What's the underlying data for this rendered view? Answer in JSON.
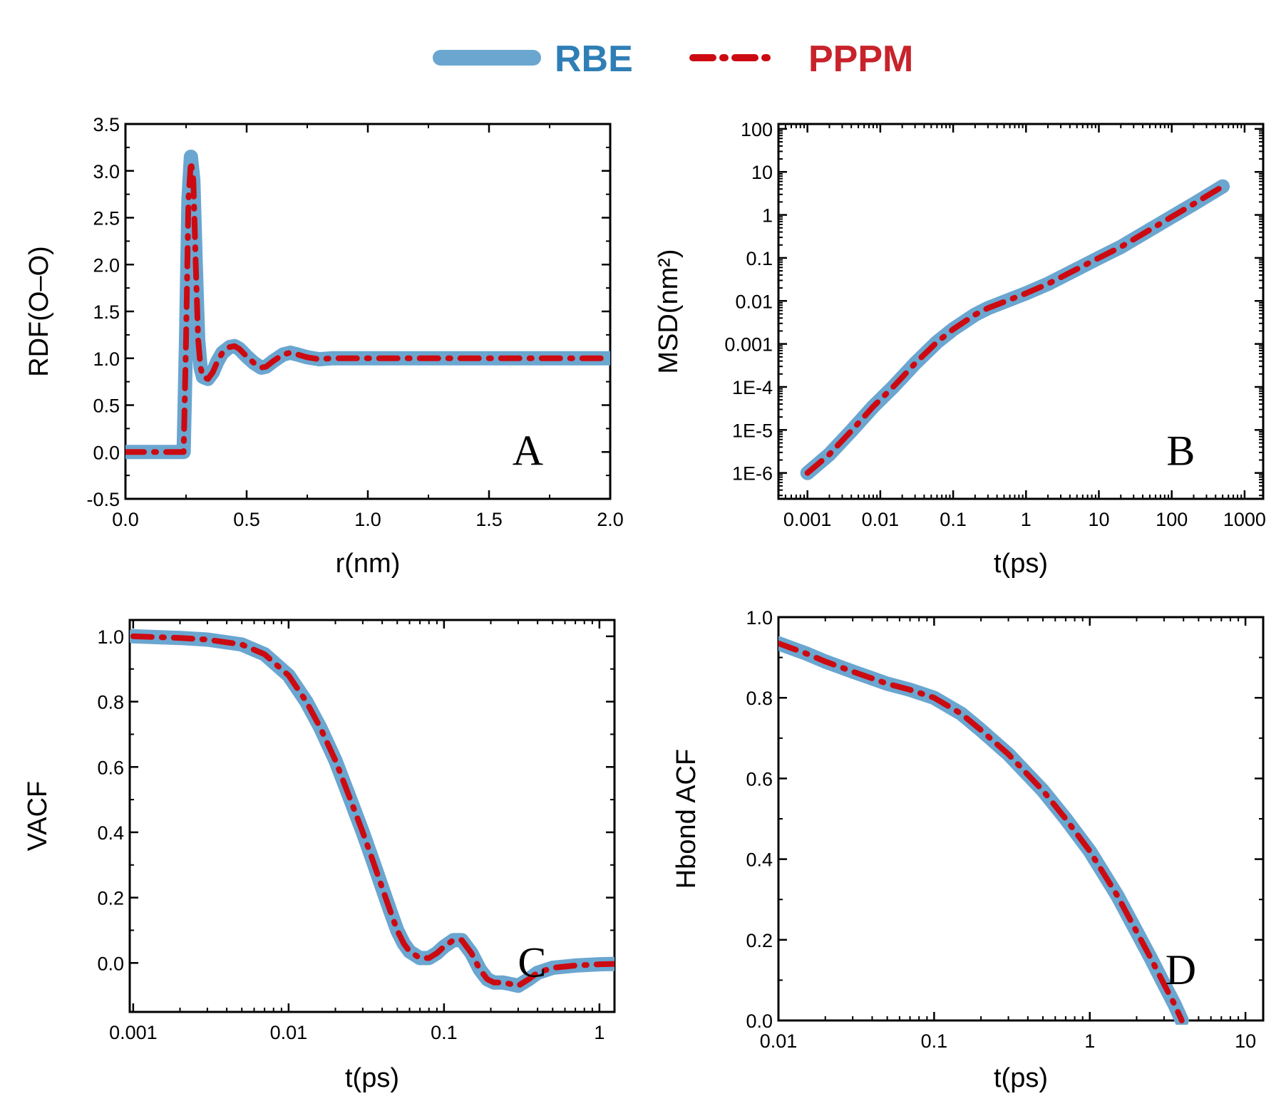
{
  "legend": {
    "rbe_label": "RBE",
    "pppm_label": "PPPM",
    "rbe_color": "#6aa6d0",
    "pppm_color": "#cc0a12",
    "rbe_text_color": "#2f7fb6",
    "pppm_text_color": "#c8232b"
  },
  "chart_data": [
    {
      "panel": "A",
      "type": "line",
      "xlabel": "r(nm)",
      "ylabel": "RDF(O–O)",
      "xscale": "linear",
      "yscale": "linear",
      "xlim": [
        0,
        2.0
      ],
      "ylim": [
        -0.5,
        3.5
      ],
      "xticks": [
        {
          "v": 0,
          "label": "0.0"
        },
        {
          "v": 0.5,
          "label": "0.5"
        },
        {
          "v": 1.0,
          "label": "1.0"
        },
        {
          "v": 1.5,
          "label": "1.5"
        },
        {
          "v": 2.0,
          "label": "2.0"
        }
      ],
      "yticks": [
        {
          "v": -0.5,
          "label": "-0.5"
        },
        {
          "v": 0,
          "label": "0.0"
        },
        {
          "v": 0.5,
          "label": "0.5"
        },
        {
          "v": 1.0,
          "label": "1.0"
        },
        {
          "v": 1.5,
          "label": "1.5"
        },
        {
          "v": 2.0,
          "label": "2.0"
        },
        {
          "v": 2.5,
          "label": "2.5"
        },
        {
          "v": 3.0,
          "label": "3.0"
        },
        {
          "v": 3.5,
          "label": "3.5"
        }
      ],
      "series": [
        {
          "name": "RBE",
          "x": [
            0,
            0.1,
            0.2,
            0.24,
            0.25,
            0.26,
            0.27,
            0.28,
            0.29,
            0.3,
            0.31,
            0.32,
            0.34,
            0.36,
            0.38,
            0.4,
            0.43,
            0.45,
            0.47,
            0.5,
            0.53,
            0.56,
            0.58,
            0.61,
            0.65,
            0.68,
            0.71,
            0.75,
            0.8,
            0.85,
            0.9,
            1.0,
            1.2,
            1.4,
            1.6,
            1.8,
            2.0
          ],
          "y": [
            0,
            0,
            0,
            0,
            1.2,
            2.7,
            3.15,
            2.9,
            2.0,
            1.2,
            0.9,
            0.8,
            0.78,
            0.85,
            0.97,
            1.06,
            1.12,
            1.13,
            1.1,
            1.02,
            0.95,
            0.9,
            0.91,
            0.97,
            1.04,
            1.06,
            1.04,
            1.01,
            0.99,
            1.0,
            1.0,
            1.0,
            1.0,
            1.0,
            1.0,
            1.0,
            1.0
          ]
        },
        {
          "name": "PPPM",
          "x": [
            0,
            0.1,
            0.2,
            0.24,
            0.25,
            0.26,
            0.27,
            0.28,
            0.29,
            0.3,
            0.31,
            0.32,
            0.34,
            0.36,
            0.38,
            0.4,
            0.43,
            0.45,
            0.47,
            0.5,
            0.53,
            0.56,
            0.58,
            0.61,
            0.65,
            0.68,
            0.71,
            0.75,
            0.8,
            0.85,
            0.9,
            1.0,
            1.2,
            1.4,
            1.6,
            1.8,
            2.0
          ],
          "y": [
            0,
            0,
            0,
            0,
            1.2,
            2.7,
            3.1,
            2.9,
            2.0,
            1.2,
            0.9,
            0.8,
            0.78,
            0.85,
            0.97,
            1.06,
            1.12,
            1.13,
            1.1,
            1.02,
            0.95,
            0.9,
            0.91,
            0.97,
            1.04,
            1.06,
            1.04,
            1.01,
            0.99,
            1.0,
            1.0,
            1.0,
            1.0,
            1.0,
            1.0,
            1.0,
            1.0
          ]
        }
      ]
    },
    {
      "panel": "B",
      "type": "line",
      "xlabel": "t(ps)",
      "ylabel": "MSD(nm²)",
      "xscale": "log",
      "yscale": "log",
      "xlim": [
        0.0004,
        1800
      ],
      "ylim": [
        2.5e-07,
        130
      ],
      "xticks": [
        {
          "v": 0.001,
          "label": "0.001"
        },
        {
          "v": 0.01,
          "label": "0.01"
        },
        {
          "v": 0.1,
          "label": "0.1"
        },
        {
          "v": 1,
          "label": "1"
        },
        {
          "v": 10,
          "label": "10"
        },
        {
          "v": 100,
          "label": "100"
        },
        {
          "v": 1000,
          "label": "1000"
        }
      ],
      "yticks": [
        {
          "v": 1e-06,
          "label": "1E-6"
        },
        {
          "v": 1e-05,
          "label": "1E-5"
        },
        {
          "v": 0.0001,
          "label": "1E-4"
        },
        {
          "v": 0.001,
          "label": "0.001"
        },
        {
          "v": 0.01,
          "label": "0.01"
        },
        {
          "v": 0.1,
          "label": "0.1"
        },
        {
          "v": 1,
          "label": "1"
        },
        {
          "v": 10,
          "label": "10"
        },
        {
          "v": 100,
          "label": "100"
        }
      ],
      "series": [
        {
          "name": "RBE",
          "x": [
            0.001,
            0.002,
            0.004,
            0.008,
            0.015,
            0.03,
            0.06,
            0.1,
            0.2,
            0.3,
            0.5,
            1,
            2,
            5,
            10,
            20,
            50,
            100,
            200,
            500
          ],
          "y": [
            1e-06,
            2.7e-06,
            9.5e-06,
            3.5e-05,
            0.0001,
            0.00035,
            0.0011,
            0.0022,
            0.0048,
            0.0068,
            0.0095,
            0.015,
            0.025,
            0.055,
            0.1,
            0.18,
            0.45,
            0.9,
            1.8,
            4.6
          ]
        },
        {
          "name": "PPPM",
          "x": [
            0.001,
            0.002,
            0.004,
            0.008,
            0.015,
            0.03,
            0.06,
            0.1,
            0.2,
            0.3,
            0.5,
            1,
            2,
            5,
            10,
            20,
            50,
            100,
            200,
            500
          ],
          "y": [
            1e-06,
            2.7e-06,
            9.5e-06,
            3.5e-05,
            0.0001,
            0.00035,
            0.0011,
            0.0022,
            0.0048,
            0.0068,
            0.0095,
            0.015,
            0.025,
            0.055,
            0.1,
            0.18,
            0.45,
            0.9,
            1.8,
            4.6
          ]
        }
      ]
    },
    {
      "panel": "C",
      "type": "line",
      "xlabel": "t(ps)",
      "ylabel": "VACF",
      "xscale": "log",
      "yscale": "linear",
      "xlim": [
        0.00095,
        1.25
      ],
      "ylim": [
        -0.15,
        1.05
      ],
      "xticks": [
        {
          "v": 0.001,
          "label": "0.001"
        },
        {
          "v": 0.01,
          "label": "0.01"
        },
        {
          "v": 0.1,
          "label": "0.1"
        },
        {
          "v": 1,
          "label": "1"
        }
      ],
      "yticks": [
        {
          "v": 0,
          "label": "0.0"
        },
        {
          "v": 0.2,
          "label": "0.2"
        },
        {
          "v": 0.4,
          "label": "0.4"
        },
        {
          "v": 0.6,
          "label": "0.6"
        },
        {
          "v": 0.8,
          "label": "0.8"
        },
        {
          "v": 1.0,
          "label": "1.0"
        }
      ],
      "series": [
        {
          "name": "RBE",
          "x": [
            0.001,
            0.002,
            0.003,
            0.005,
            0.007,
            0.01,
            0.013,
            0.016,
            0.02,
            0.025,
            0.03,
            0.035,
            0.04,
            0.045,
            0.05,
            0.055,
            0.06,
            0.07,
            0.08,
            0.09,
            0.1,
            0.115,
            0.13,
            0.15,
            0.17,
            0.19,
            0.21,
            0.24,
            0.27,
            0.3,
            0.35,
            0.4,
            0.5,
            0.7,
            1.0,
            1.25
          ],
          "y": [
            1.0,
            0.995,
            0.99,
            0.975,
            0.945,
            0.88,
            0.8,
            0.72,
            0.62,
            0.5,
            0.4,
            0.31,
            0.23,
            0.16,
            0.1,
            0.06,
            0.035,
            0.015,
            0.015,
            0.03,
            0.05,
            0.07,
            0.07,
            0.03,
            -0.02,
            -0.05,
            -0.06,
            -0.06,
            -0.065,
            -0.07,
            -0.05,
            -0.03,
            -0.015,
            -0.008,
            -0.004,
            -0.003
          ]
        },
        {
          "name": "PPPM",
          "x": [
            0.001,
            0.002,
            0.003,
            0.005,
            0.007,
            0.01,
            0.013,
            0.016,
            0.02,
            0.025,
            0.03,
            0.035,
            0.04,
            0.045,
            0.05,
            0.055,
            0.06,
            0.07,
            0.08,
            0.09,
            0.1,
            0.115,
            0.13,
            0.15,
            0.17,
            0.19,
            0.21,
            0.24,
            0.27,
            0.3,
            0.35,
            0.4,
            0.5,
            0.7,
            1.0,
            1.25
          ],
          "y": [
            1.0,
            0.995,
            0.99,
            0.975,
            0.945,
            0.88,
            0.8,
            0.72,
            0.62,
            0.5,
            0.4,
            0.31,
            0.23,
            0.16,
            0.1,
            0.06,
            0.035,
            0.015,
            0.015,
            0.03,
            0.05,
            0.07,
            0.07,
            0.03,
            -0.02,
            -0.05,
            -0.06,
            -0.06,
            -0.065,
            -0.07,
            -0.05,
            -0.03,
            -0.015,
            -0.008,
            -0.004,
            -0.003
          ]
        }
      ]
    },
    {
      "panel": "D",
      "type": "line",
      "xlabel": "t(ps)",
      "ylabel": "Hbond ACF",
      "xscale": "log",
      "yscale": "linear",
      "xlim": [
        0.01,
        13
      ],
      "ylim": [
        0,
        1.0
      ],
      "xticks": [
        {
          "v": 0.01,
          "label": "0.01"
        },
        {
          "v": 0.1,
          "label": "0.1"
        },
        {
          "v": 1,
          "label": "1"
        },
        {
          "v": 10,
          "label": "10"
        }
      ],
      "yticks": [
        {
          "v": 0,
          "label": "0.0"
        },
        {
          "v": 0.2,
          "label": "0.2"
        },
        {
          "v": 0.4,
          "label": "0.4"
        },
        {
          "v": 0.6,
          "label": "0.6"
        },
        {
          "v": 0.8,
          "label": "0.8"
        },
        {
          "v": 1.0,
          "label": "1.0"
        }
      ],
      "series": [
        {
          "name": "RBE",
          "x": [
            0.01,
            0.015,
            0.02,
            0.03,
            0.05,
            0.07,
            0.1,
            0.15,
            0.2,
            0.3,
            0.5,
            0.7,
            1.0,
            1.5,
            2.0,
            2.5,
            3.0,
            3.5,
            3.9
          ],
          "y": [
            0.935,
            0.91,
            0.89,
            0.865,
            0.835,
            0.82,
            0.8,
            0.76,
            0.72,
            0.66,
            0.57,
            0.5,
            0.42,
            0.31,
            0.22,
            0.15,
            0.09,
            0.04,
            0.0
          ]
        },
        {
          "name": "PPPM",
          "x": [
            0.01,
            0.015,
            0.02,
            0.03,
            0.05,
            0.07,
            0.1,
            0.15,
            0.2,
            0.3,
            0.5,
            0.7,
            1.0,
            1.5,
            2.0,
            2.5,
            3.0,
            3.5,
            3.9
          ],
          "y": [
            0.935,
            0.91,
            0.89,
            0.865,
            0.835,
            0.82,
            0.8,
            0.76,
            0.72,
            0.66,
            0.57,
            0.5,
            0.42,
            0.31,
            0.22,
            0.15,
            0.09,
            0.04,
            0.0
          ]
        }
      ]
    }
  ]
}
